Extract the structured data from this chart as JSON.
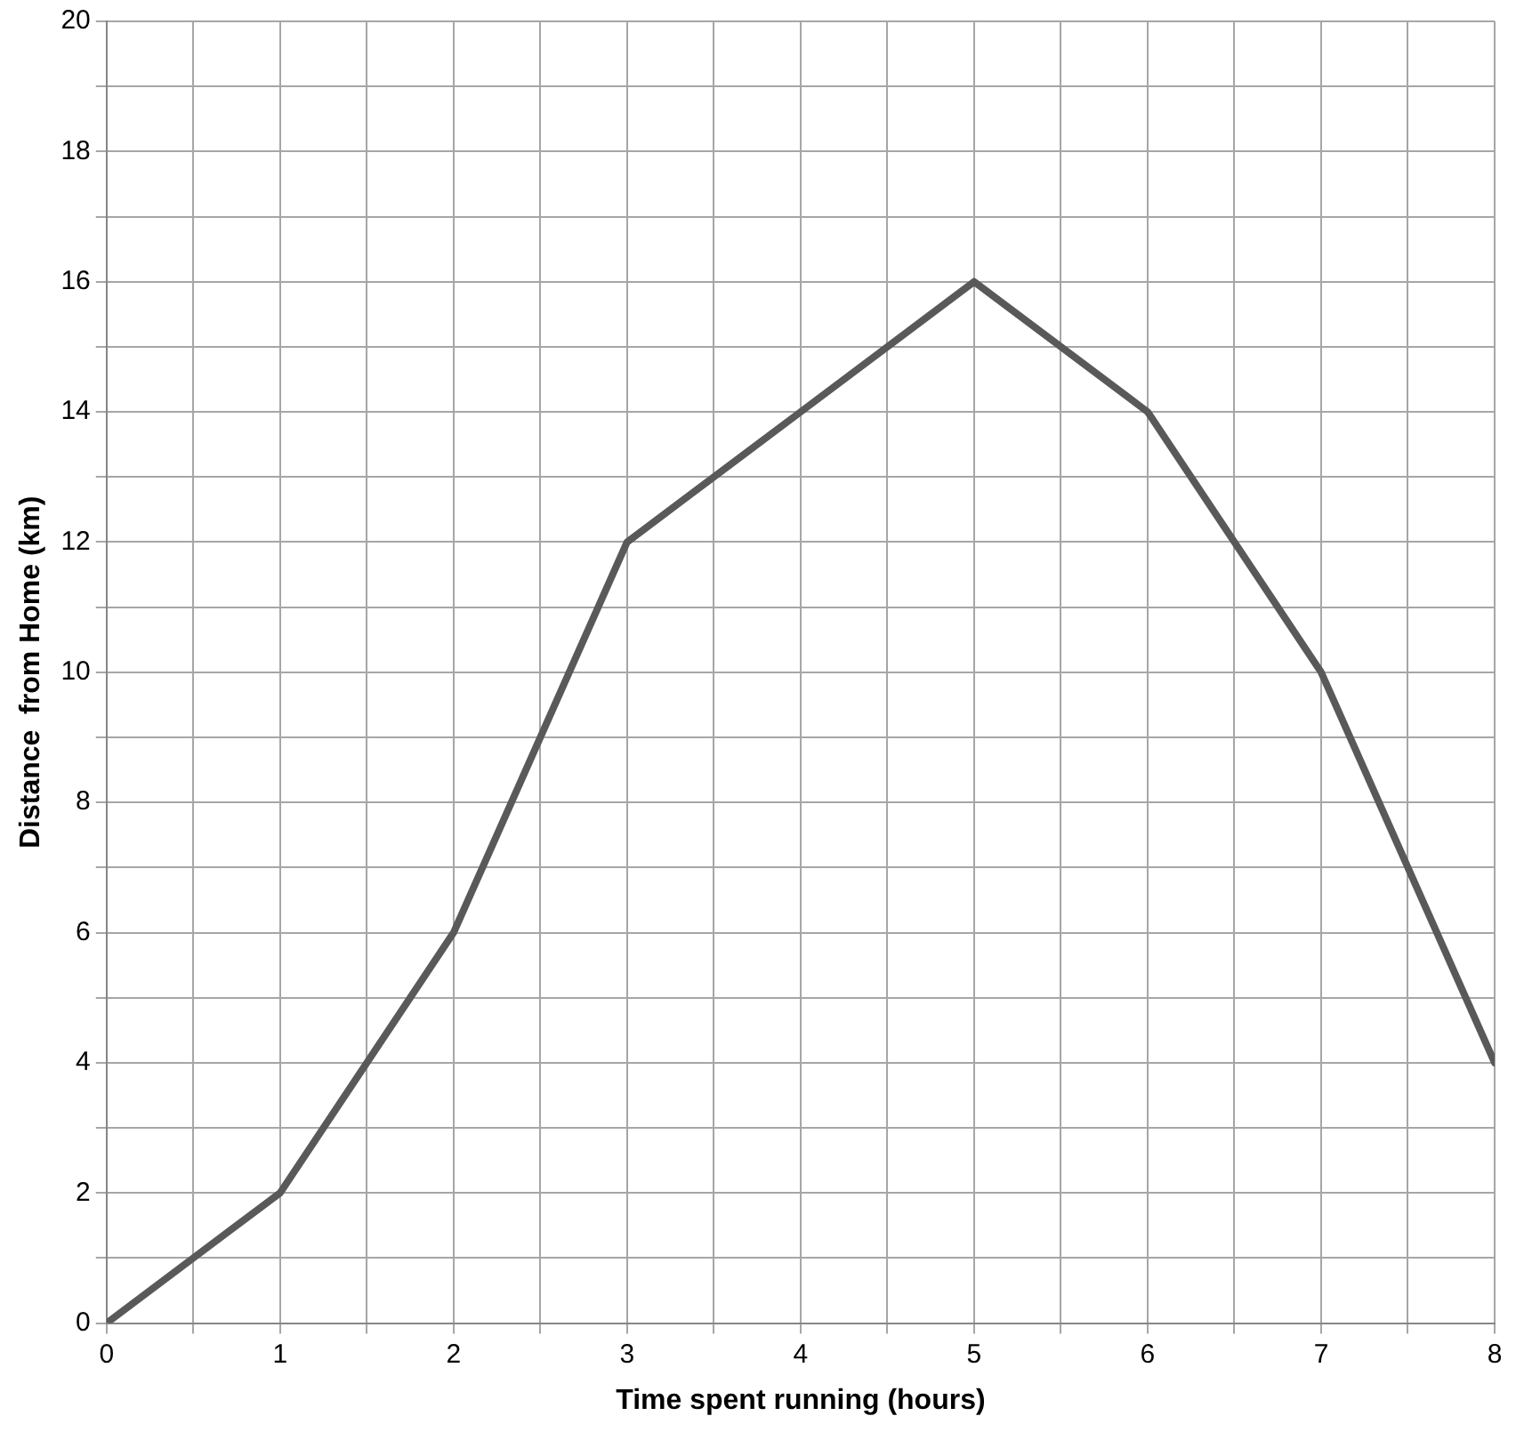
{
  "chart_data": {
    "type": "line",
    "xlabel": "Time spent running (hours)",
    "ylabel": "Distance  from Home (km)",
    "x": [
      0,
      1,
      2,
      3,
      4,
      5,
      6,
      7,
      8
    ],
    "series": [
      {
        "color": "#595959",
        "values": [
          0,
          2,
          6,
          12,
          14,
          16,
          14,
          10,
          4
        ]
      }
    ],
    "xlim": [
      0,
      8
    ],
    "ylim": [
      0,
      20
    ],
    "xticks": [
      0,
      {
        "value": 0.5,
        "label": null
      },
      1,
      {
        "value": 1.5,
        "label": null
      },
      2,
      {
        "value": 2.5,
        "label": null
      },
      3,
      {
        "value": 3.5,
        "label": null
      },
      4,
      {
        "value": 4.5,
        "label": null
      },
      5,
      {
        "value": 5.5,
        "label": null
      },
      6,
      {
        "value": 6.5,
        "label": null
      },
      7,
      {
        "value": 7.5,
        "label": null
      },
      8
    ],
    "yticks": [
      0,
      {
        "value": 1,
        "label": null
      },
      2,
      {
        "value": 3,
        "label": null
      },
      4,
      {
        "value": 5,
        "label": null
      },
      6,
      {
        "value": 7,
        "label": null
      },
      8,
      {
        "value": 9,
        "label": null
      },
      10,
      {
        "value": 11,
        "label": null
      },
      12,
      {
        "value": 13,
        "label": null
      },
      14,
      {
        "value": 15,
        "label": null
      },
      16,
      {
        "value": 17,
        "label": null
      },
      18,
      {
        "value": 19,
        "label": null
      },
      20
    ],
    "grid": true,
    "legend": false,
    "marker": "none",
    "line_style": "solid"
  }
}
